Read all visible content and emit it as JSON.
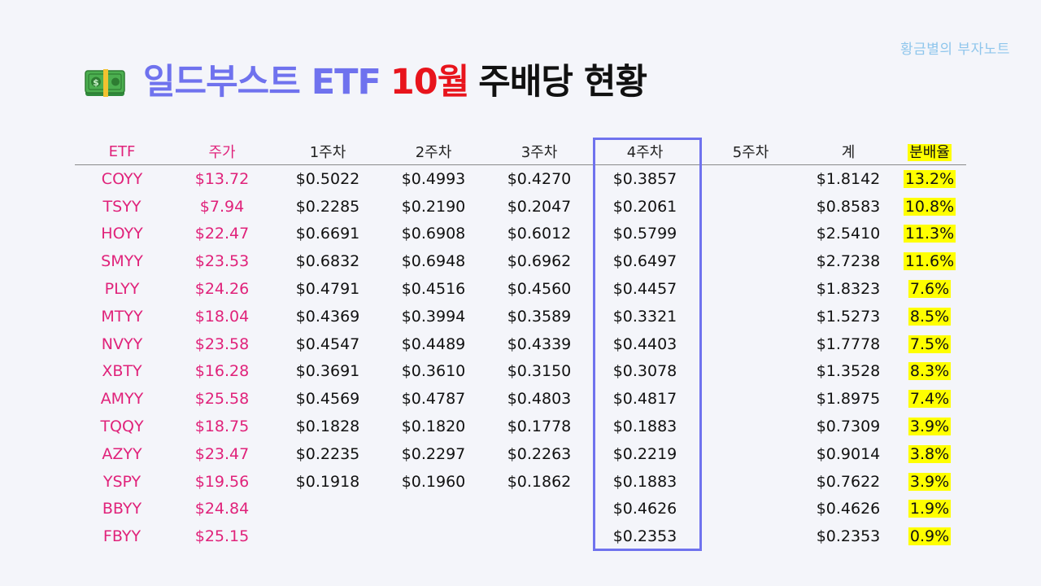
{
  "watermark": "황금별의 부자노트",
  "title": {
    "part1": "일드부스트 ETF",
    "part2": "10월",
    "part3": "주배당 현황",
    "icon": "money-bill-icon",
    "colors": {
      "part1": "#6f72ee",
      "part2": "#e8141c",
      "part3": "#111111"
    }
  },
  "table": {
    "headers": [
      "ETF",
      "주가",
      "1주차",
      "2주차",
      "3주차",
      "4주차",
      "5주차",
      "계",
      "분배율"
    ],
    "highlighted_column": "4주차",
    "rows": [
      [
        "COYY",
        "$13.72",
        "$0.5022",
        "$0.4993",
        "$0.4270",
        "$0.3857",
        "",
        "$1.8142",
        "13.2%"
      ],
      [
        "TSYY",
        "$7.94",
        "$0.2285",
        "$0.2190",
        "$0.2047",
        "$0.2061",
        "",
        "$0.8583",
        "10.8%"
      ],
      [
        "HOYY",
        "$22.47",
        "$0.6691",
        "$0.6908",
        "$0.6012",
        "$0.5799",
        "",
        "$2.5410",
        "11.3%"
      ],
      [
        "SMYY",
        "$23.53",
        "$0.6832",
        "$0.6948",
        "$0.6962",
        "$0.6497",
        "",
        "$2.7238",
        "11.6%"
      ],
      [
        "PLYY",
        "$24.26",
        "$0.4791",
        "$0.4516",
        "$0.4560",
        "$0.4457",
        "",
        "$1.8323",
        "7.6%"
      ],
      [
        "MTYY",
        "$18.04",
        "$0.4369",
        "$0.3994",
        "$0.3589",
        "$0.3321",
        "",
        "$1.5273",
        "8.5%"
      ],
      [
        "NVYY",
        "$23.58",
        "$0.4547",
        "$0.4489",
        "$0.4339",
        "$0.4403",
        "",
        "$1.7778",
        "7.5%"
      ],
      [
        "XBTY",
        "$16.28",
        "$0.3691",
        "$0.3610",
        "$0.3150",
        "$0.3078",
        "",
        "$1.3528",
        "8.3%"
      ],
      [
        "AMYY",
        "$25.58",
        "$0.4569",
        "$0.4787",
        "$0.4803",
        "$0.4817",
        "",
        "$1.8975",
        "7.4%"
      ],
      [
        "TQQY",
        "$18.75",
        "$0.1828",
        "$0.1820",
        "$0.1778",
        "$0.1883",
        "",
        "$0.7309",
        "3.9%"
      ],
      [
        "AZYY",
        "$23.47",
        "$0.2235",
        "$0.2297",
        "$0.2263",
        "$0.2219",
        "",
        "$0.9014",
        "3.8%"
      ],
      [
        "YSPY",
        "$19.56",
        "$0.1918",
        "$0.1960",
        "$0.1862",
        "$0.1883",
        "",
        "$0.7622",
        "3.9%"
      ],
      [
        "BBYY",
        "$24.84",
        "",
        "",
        "",
        "$0.4626",
        "",
        "$0.4626",
        "1.9%"
      ],
      [
        "FBYY",
        "$25.15",
        "",
        "",
        "",
        "$0.2353",
        "",
        "$0.2353",
        "0.9%"
      ]
    ]
  },
  "colors": {
    "accent": "#6f72ee",
    "ticker": "#e0227a",
    "highlight": "#ffff00",
    "month": "#e8141c",
    "watermark": "#8fc6ec"
  }
}
